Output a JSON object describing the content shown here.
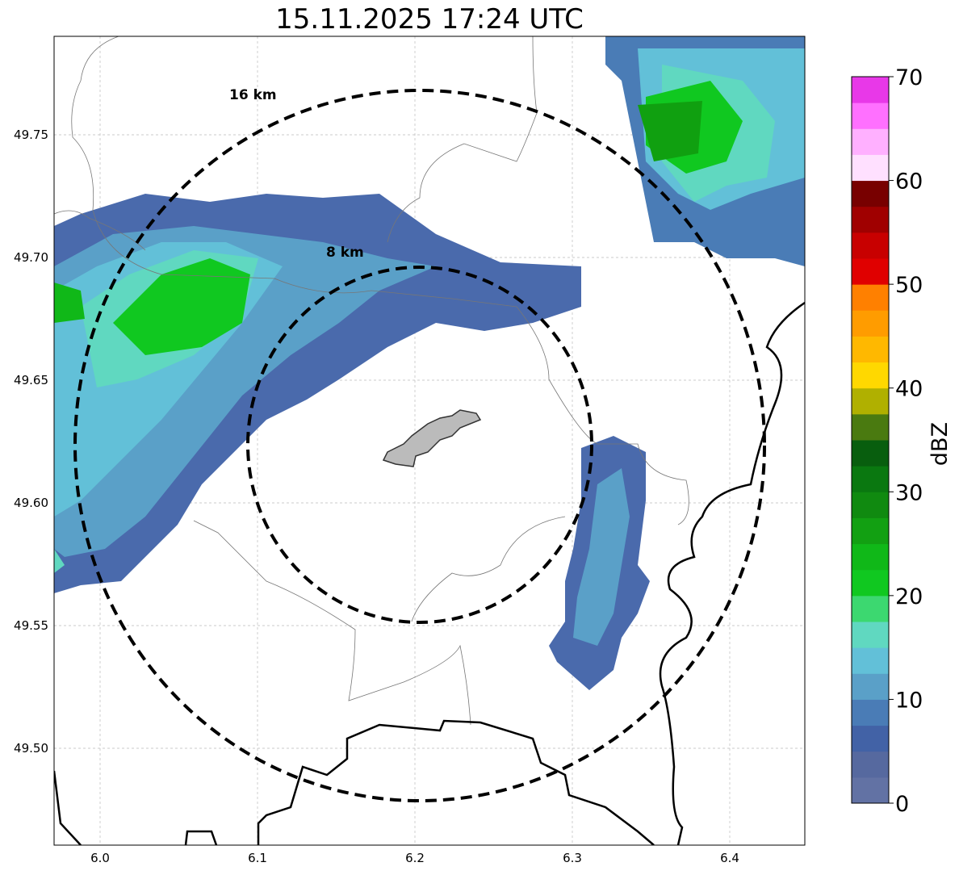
{
  "title": "15.11.2025 17:24 UTC",
  "map": {
    "x_ticks": [
      {
        "v": 6.0,
        "label": "6.0"
      },
      {
        "v": 6.1,
        "label": "6.1"
      },
      {
        "v": 6.2,
        "label": "6.2"
      },
      {
        "v": 6.3,
        "label": "6.3"
      },
      {
        "v": 6.4,
        "label": "6.4"
      }
    ],
    "y_ticks": [
      {
        "v": 49.75,
        "label": "49.75"
      },
      {
        "v": 49.7,
        "label": "49.70"
      },
      {
        "v": 49.65,
        "label": "49.65"
      },
      {
        "v": 49.6,
        "label": "49.60"
      },
      {
        "v": 49.55,
        "label": "49.55"
      },
      {
        "v": 49.5,
        "label": "49.50"
      }
    ],
    "lon_range": [
      5.971,
      6.448
    ],
    "lat_range": [
      49.46,
      49.79
    ],
    "range_rings": [
      {
        "label": "16 km",
        "km": 16
      },
      {
        "label": "8 km",
        "km": 8
      }
    ]
  },
  "colorbar": {
    "label": "dBZ",
    "ticks": [
      "0",
      "10",
      "20",
      "30",
      "40",
      "50",
      "60",
      "70"
    ],
    "colors": [
      "#6272a4",
      "#56699f",
      "#4262a6",
      "#4a7cb6",
      "#5aa0c8",
      "#62c0d8",
      "#60d8c0",
      "#3cd870",
      "#10c820",
      "#10b818",
      "#12a012",
      "#108a10",
      "#0a7810",
      "#085e0e",
      "#4a7a10",
      "#b0b000",
      "#ffd800",
      "#ffb800",
      "#ff9c00",
      "#ff8000",
      "#e00000",
      "#c80000",
      "#a00000",
      "#780000",
      "#ffe0ff",
      "#ffb0ff",
      "#ff70ff",
      "#e838e8"
    ]
  }
}
